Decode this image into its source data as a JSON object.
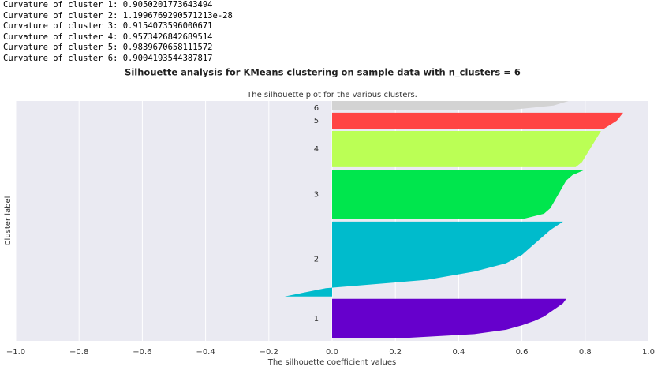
{
  "console": [
    "Curvature of cluster 1: 0.9050201773643494",
    "Curvature of cluster 2: 1.1996769290571213e-28",
    "Curvature of cluster 3: 0.9154073596000671",
    "Curvature of cluster 4: 0.9573426842689514",
    "Curvature of cluster 5: 0.9839670658111572",
    "Curvature of cluster 6: 0.9004193544387817"
  ],
  "chart_data": {
    "type": "silhouette",
    "suptitle": "Silhouette analysis for KMeans clustering on sample data with n_clusters = 6",
    "title": "The silhouette plot for the various clusters.",
    "xlabel": "The silhouette coefficient values",
    "ylabel": "Cluster label",
    "xlim": [
      -1,
      1
    ],
    "ylim": [
      0,
      1000
    ],
    "xticks": [
      {
        "value": -1,
        "label": "−1.0"
      },
      {
        "value": -0.8,
        "label": "−0.8"
      },
      {
        "value": -0.6,
        "label": "−0.6"
      },
      {
        "value": -0.4,
        "label": "−0.4"
      },
      {
        "value": -0.2,
        "label": "−0.2"
      },
      {
        "value": 0,
        "label": "0.0"
      },
      {
        "value": 0.2,
        "label": "0.2"
      },
      {
        "value": 0.4,
        "label": "0.4"
      },
      {
        "value": 0.6,
        "label": "0.6"
      },
      {
        "value": 0.8,
        "label": "0.8"
      },
      {
        "value": 1,
        "label": "1.0"
      }
    ],
    "grid": true,
    "series": [
      {
        "name": "1",
        "color": "#6600cc",
        "size": 165,
        "values": [
          0.2,
          0.45,
          0.55,
          0.6,
          0.64,
          0.67,
          0.69,
          0.71,
          0.73,
          0.74
        ]
      },
      {
        "name": "2",
        "color": "#00bbcc",
        "size": 312,
        "values": [
          -0.15,
          -0.02,
          0.3,
          0.45,
          0.55,
          0.6,
          0.63,
          0.66,
          0.69,
          0.73
        ]
      },
      {
        "name": "3",
        "color": "#00e64d",
        "size": 207,
        "values": [
          0.6,
          0.67,
          0.69,
          0.7,
          0.71,
          0.72,
          0.73,
          0.74,
          0.76,
          0.8
        ]
      },
      {
        "name": "4",
        "color": "#bbff55",
        "size": 151,
        "values": [
          0.77,
          0.79,
          0.8,
          0.81,
          0.82,
          0.83,
          0.84,
          0.85
        ]
      },
      {
        "name": "5",
        "color": "#ff4444",
        "size": 66,
        "values": [
          0.86,
          0.88,
          0.9,
          0.91,
          0.92
        ]
      },
      {
        "name": "6",
        "color": "#d3d3d3",
        "size": 100,
        "values": [
          0.55,
          0.7,
          0.75,
          0.78,
          0.8,
          0.81
        ]
      }
    ]
  }
}
